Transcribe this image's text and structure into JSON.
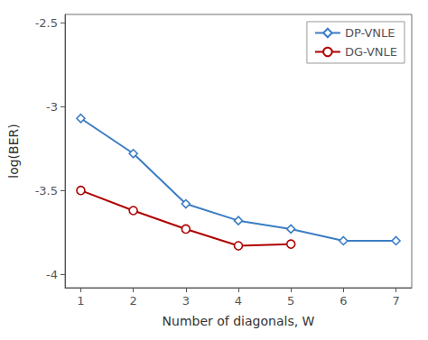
{
  "chart_data": {
    "type": "line",
    "xlabel": "Number of diagonals, W",
    "ylabel": "log(BER)",
    "series": [
      {
        "name": "DP-VNLE",
        "color": "#3C7DC4",
        "marker": "diamond",
        "x": [
          1,
          2,
          3,
          4,
          5,
          6,
          7
        ],
        "values": [
          -3.07,
          -3.28,
          -3.58,
          -3.68,
          -3.73,
          -3.8,
          -3.8
        ]
      },
      {
        "name": "DG-VNLE",
        "color": "#B00000",
        "marker": "circle",
        "x": [
          1,
          2,
          3,
          4,
          5
        ],
        "values": [
          -3.5,
          -3.62,
          -3.73,
          -3.83,
          -3.82
        ]
      }
    ],
    "xlim": [
      0.7,
      7.3
    ],
    "xticks": [
      1,
      2,
      3,
      4,
      5,
      6,
      7
    ],
    "ylim": [
      -4.08,
      -2.45
    ],
    "yticks": [
      -4,
      -3.5,
      -3,
      -2.5
    ],
    "grid": false,
    "legend": "upper right"
  }
}
